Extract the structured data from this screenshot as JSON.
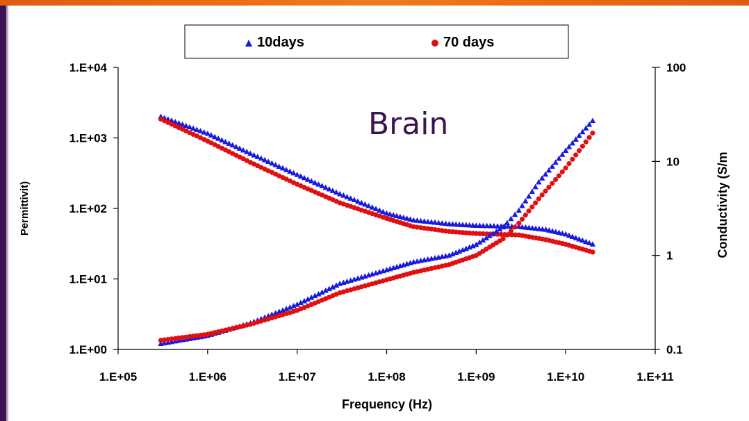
{
  "frame": {
    "accent_top": "#e8661a",
    "accent_left": "#3a1450"
  },
  "chart_data": {
    "type": "scatter",
    "annotation": "Brain",
    "xlabel": "Frequency (Hz)",
    "ylabel_left": "Permittivit)",
    "ylabel_right": "Conductivity (S/m",
    "x_scale": "log",
    "y_left_scale": "log",
    "y_right_scale": "log",
    "xlim": [
      100000,
      100000000000
    ],
    "ylim_left": [
      1,
      10000
    ],
    "ylim_right": [
      0.1,
      100
    ],
    "x_ticks": [
      "1.E+05",
      "1.E+06",
      "1.E+07",
      "1.E+08",
      "1.E+09",
      "1.E+10",
      "1.E+11"
    ],
    "y_left_ticks": [
      "1.E+00",
      "1.E+01",
      "1.E+02",
      "1.E+03",
      "1.E+04"
    ],
    "y_right_ticks": [
      "0.1",
      "1",
      "10",
      "100"
    ],
    "grid": false,
    "legend_position": "top",
    "legend": [
      {
        "name": "10days",
        "marker": "triangle",
        "color": "#1a1adc"
      },
      {
        "name": "70 days",
        "marker": "circle",
        "color": "#e01010"
      }
    ],
    "series": [
      {
        "name": "10days",
        "quantity": "permittivity",
        "axis": "left",
        "marker": "triangle",
        "color": "#1a1adc",
        "points": [
          [
            300000,
            2000
          ],
          [
            1000000,
            1150
          ],
          [
            3000000,
            600
          ],
          [
            10000000,
            300
          ],
          [
            30000000,
            160
          ],
          [
            100000000,
            85
          ],
          [
            200000000,
            68
          ],
          [
            500000000,
            60
          ],
          [
            1000000000,
            57
          ],
          [
            3000000000,
            55
          ],
          [
            6000000000,
            50
          ],
          [
            10000000000,
            43
          ],
          [
            20000000000,
            31
          ]
        ]
      },
      {
        "name": "70 days",
        "quantity": "permittivity",
        "axis": "left",
        "marker": "circle",
        "color": "#e01010",
        "points": [
          [
            300000,
            1850
          ],
          [
            1000000,
            900
          ],
          [
            3000000,
            450
          ],
          [
            10000000,
            220
          ],
          [
            30000000,
            120
          ],
          [
            100000000,
            72
          ],
          [
            200000000,
            55
          ],
          [
            500000000,
            47
          ],
          [
            1000000000,
            44
          ],
          [
            3000000000,
            42
          ],
          [
            6000000000,
            36
          ],
          [
            10000000000,
            31
          ],
          [
            20000000000,
            24
          ]
        ]
      },
      {
        "name": "10days",
        "quantity": "conductivity",
        "axis": "right",
        "marker": "triangle",
        "color": "#1a1adc",
        "points": [
          [
            300000,
            0.115
          ],
          [
            1000000,
            0.14
          ],
          [
            3000000,
            0.19
          ],
          [
            10000000,
            0.3
          ],
          [
            30000000,
            0.5
          ],
          [
            100000000,
            0.7
          ],
          [
            200000000,
            0.85
          ],
          [
            500000000,
            1.0
          ],
          [
            1000000000,
            1.3
          ],
          [
            2000000000,
            2.0
          ],
          [
            3000000000,
            3.0
          ],
          [
            5000000000,
            6.0
          ],
          [
            10000000000,
            13
          ],
          [
            20000000000,
            27
          ]
        ]
      },
      {
        "name": "70 days",
        "quantity": "conductivity",
        "axis": "right",
        "marker": "circle",
        "color": "#e01010",
        "points": [
          [
            300000,
            0.125
          ],
          [
            1000000,
            0.145
          ],
          [
            3000000,
            0.185
          ],
          [
            10000000,
            0.26
          ],
          [
            30000000,
            0.4
          ],
          [
            100000000,
            0.55
          ],
          [
            200000000,
            0.66
          ],
          [
            500000000,
            0.8
          ],
          [
            1000000000,
            1.0
          ],
          [
            2000000000,
            1.5
          ],
          [
            3000000000,
            2.2
          ],
          [
            5000000000,
            4.0
          ],
          [
            10000000000,
            8.5
          ],
          [
            20000000000,
            20
          ]
        ]
      }
    ]
  }
}
